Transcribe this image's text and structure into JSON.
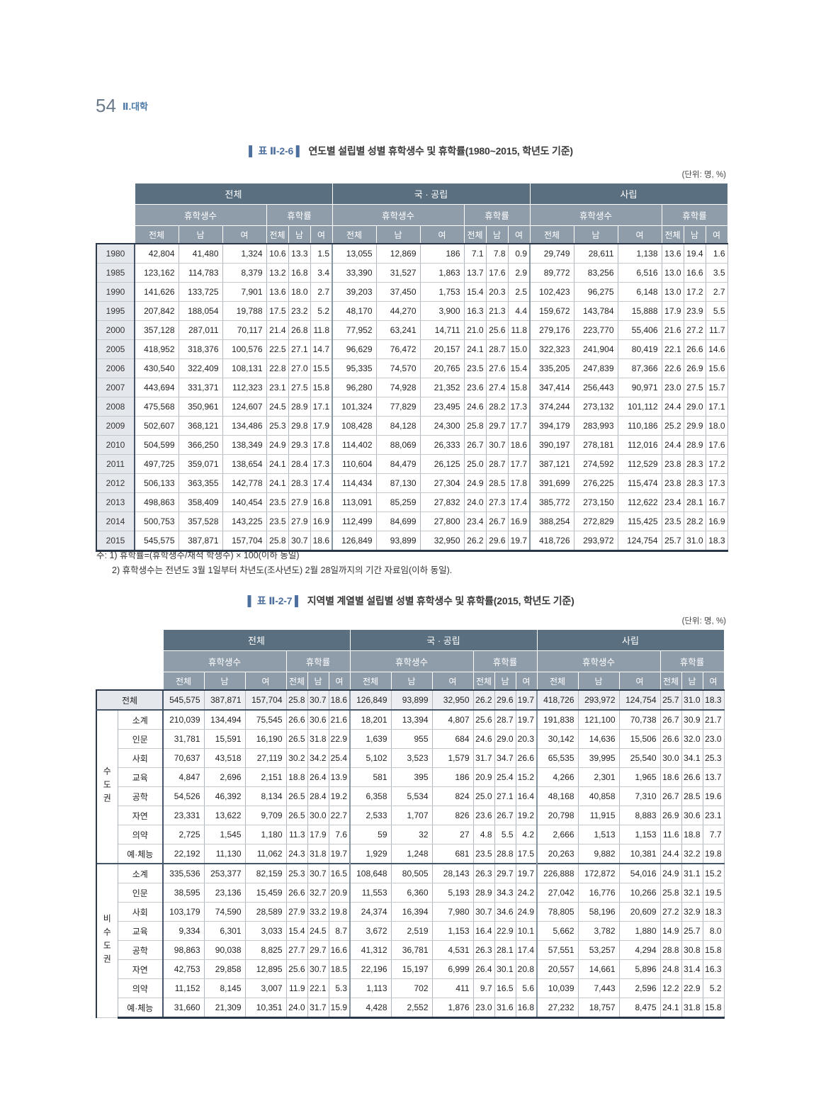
{
  "colors": {
    "accent_blue": "#4d6f9d",
    "header_dark": "#5a7080",
    "header_mid": "#8f9dab",
    "label_bg": "#e4e7ec",
    "total_row_bg": "#eceef1"
  },
  "page": {
    "number": "54",
    "section": "Ⅱ.대학"
  },
  "table1": {
    "title_tag": "�Ⅰ 표 Ⅱ-2-6 ▕",
    "title_tag_display": "▌ 표 Ⅱ-2-6 ▌",
    "title": "연도별 설립별 성별 휴학생수 및 휴학률(1980~2015, 학년도 기준)",
    "unit": "(단위: 명, %)",
    "col_groups": [
      "전체",
      "국 · 공립",
      "사립"
    ],
    "sub_groups": [
      "휴학생수",
      "휴학률"
    ],
    "leaf_headers": [
      "전체",
      "남",
      "여"
    ],
    "rows": [
      {
        "label": "1980",
        "values": [
          "42,804",
          "41,480",
          "1,324",
          "10.6",
          "13.3",
          "1.5",
          "13,055",
          "12,869",
          "186",
          "7.1",
          "7.8",
          "0.9",
          "29,749",
          "28,611",
          "1,138",
          "13.6",
          "19.4",
          "1.6"
        ]
      },
      {
        "label": "1985",
        "values": [
          "123,162",
          "114,783",
          "8,379",
          "13.2",
          "16.8",
          "3.4",
          "33,390",
          "31,527",
          "1,863",
          "13.7",
          "17.6",
          "2.9",
          "89,772",
          "83,256",
          "6,516",
          "13.0",
          "16.6",
          "3.5"
        ]
      },
      {
        "label": "1990",
        "values": [
          "141,626",
          "133,725",
          "7,901",
          "13.6",
          "18.0",
          "2.7",
          "39,203",
          "37,450",
          "1,753",
          "15.4",
          "20.3",
          "2.5",
          "102,423",
          "96,275",
          "6,148",
          "13.0",
          "17.2",
          "2.7"
        ]
      },
      {
        "label": "1995",
        "values": [
          "207,842",
          "188,054",
          "19,788",
          "17.5",
          "23.2",
          "5.2",
          "48,170",
          "44,270",
          "3,900",
          "16.3",
          "21.3",
          "4.4",
          "159,672",
          "143,784",
          "15,888",
          "17.9",
          "23.9",
          "5.5"
        ]
      },
      {
        "label": "2000",
        "values": [
          "357,128",
          "287,011",
          "70,117",
          "21.4",
          "26.8",
          "11.8",
          "77,952",
          "63,241",
          "14,711",
          "21.0",
          "25.6",
          "11.8",
          "279,176",
          "223,770",
          "55,406",
          "21.6",
          "27.2",
          "11.7"
        ]
      },
      {
        "label": "2005",
        "values": [
          "418,952",
          "318,376",
          "100,576",
          "22.5",
          "27.1",
          "14.7",
          "96,629",
          "76,472",
          "20,157",
          "24.1",
          "28.7",
          "15.0",
          "322,323",
          "241,904",
          "80,419",
          "22.1",
          "26.6",
          "14.6"
        ]
      },
      {
        "label": "2006",
        "values": [
          "430,540",
          "322,409",
          "108,131",
          "22.8",
          "27.0",
          "15.5",
          "95,335",
          "74,570",
          "20,765",
          "23.5",
          "27.6",
          "15.4",
          "335,205",
          "247,839",
          "87,366",
          "22.6",
          "26.9",
          "15.6"
        ]
      },
      {
        "label": "2007",
        "values": [
          "443,694",
          "331,371",
          "112,323",
          "23.1",
          "27.5",
          "15.8",
          "96,280",
          "74,928",
          "21,352",
          "23.6",
          "27.4",
          "15.8",
          "347,414",
          "256,443",
          "90,971",
          "23.0",
          "27.5",
          "15.7"
        ]
      },
      {
        "label": "2008",
        "values": [
          "475,568",
          "350,961",
          "124,607",
          "24.5",
          "28.9",
          "17.1",
          "101,324",
          "77,829",
          "23,495",
          "24.6",
          "28.2",
          "17.3",
          "374,244",
          "273,132",
          "101,112",
          "24.4",
          "29.0",
          "17.1"
        ]
      },
      {
        "label": "2009",
        "values": [
          "502,607",
          "368,121",
          "134,486",
          "25.3",
          "29.8",
          "17.9",
          "108,428",
          "84,128",
          "24,300",
          "25.8",
          "29.7",
          "17.7",
          "394,179",
          "283,993",
          "110,186",
          "25.2",
          "29.9",
          "18.0"
        ]
      },
      {
        "label": "2010",
        "values": [
          "504,599",
          "366,250",
          "138,349",
          "24.9",
          "29.3",
          "17.8",
          "114,402",
          "88,069",
          "26,333",
          "26.7",
          "30.7",
          "18.6",
          "390,197",
          "278,181",
          "112,016",
          "24.4",
          "28.9",
          "17.6"
        ]
      },
      {
        "label": "2011",
        "values": [
          "497,725",
          "359,071",
          "138,654",
          "24.1",
          "28.4",
          "17.3",
          "110,604",
          "84,479",
          "26,125",
          "25.0",
          "28.7",
          "17.7",
          "387,121",
          "274,592",
          "112,529",
          "23.8",
          "28.3",
          "17.2"
        ]
      },
      {
        "label": "2012",
        "values": [
          "506,133",
          "363,355",
          "142,778",
          "24.1",
          "28.3",
          "17.4",
          "114,434",
          "87,130",
          "27,304",
          "24.9",
          "28.5",
          "17.8",
          "391,699",
          "276,225",
          "115,474",
          "23.8",
          "28.3",
          "17.3"
        ]
      },
      {
        "label": "2013",
        "values": [
          "498,863",
          "358,409",
          "140,454",
          "23.5",
          "27.9",
          "16.8",
          "113,091",
          "85,259",
          "27,832",
          "24.0",
          "27.3",
          "17.4",
          "385,772",
          "273,150",
          "112,622",
          "23.4",
          "28.1",
          "16.7"
        ]
      },
      {
        "label": "2014",
        "values": [
          "500,753",
          "357,528",
          "143,225",
          "23.5",
          "27.9",
          "16.9",
          "112,499",
          "84,699",
          "27,800",
          "23.4",
          "26.7",
          "16.9",
          "388,254",
          "272,829",
          "115,425",
          "23.5",
          "28.2",
          "16.9"
        ]
      },
      {
        "label": "2015",
        "values": [
          "545,575",
          "387,871",
          "157,704",
          "25.8",
          "30.7",
          "18.6",
          "126,849",
          "93,899",
          "32,950",
          "26.2",
          "29.6",
          "19.7",
          "418,726",
          "293,972",
          "124,754",
          "25.7",
          "31.0",
          "18.3"
        ]
      }
    ],
    "notes": [
      "주: 1) 휴학률=(휴학생수/재적 학생수) × 100(이하 동일)",
      "2) 휴학생수는 전년도 3월 1일부터 차년도(조사년도) 2월 28일까지의 기간 자료임(이하 동일)."
    ]
  },
  "table2": {
    "title_tag_display": "▌ 표 Ⅱ-2-7 ▌",
    "title": "지역별 계열별 설립별 성별 휴학생수 및 휴학률(2015, 학년도 기준)",
    "unit": "(단위: 명, %)",
    "col_groups": [
      "전체",
      "국 · 공립",
      "사립"
    ],
    "sub_groups": [
      "휴학생수",
      "휴학률"
    ],
    "leaf_headers": [
      "전체",
      "남",
      "여"
    ],
    "total_row": {
      "label": "전체",
      "values": [
        "545,575",
        "387,871",
        "157,704",
        "25.8",
        "30.7",
        "18.6",
        "126,849",
        "93,899",
        "32,950",
        "26.2",
        "29.6",
        "19.7",
        "418,726",
        "293,972",
        "124,754",
        "25.7",
        "31.0",
        "18.3"
      ]
    },
    "groups": [
      {
        "label": "수도권",
        "rows": [
          {
            "label": "소계",
            "values": [
              "210,039",
              "134,494",
              "75,545",
              "26.6",
              "30.6",
              "21.6",
              "18,201",
              "13,394",
              "4,807",
              "25.6",
              "28.7",
              "19.7",
              "191,838",
              "121,100",
              "70,738",
              "26.7",
              "30.9",
              "21.7"
            ]
          },
          {
            "label": "인문",
            "values": [
              "31,781",
              "15,591",
              "16,190",
              "26.5",
              "31.8",
              "22.9",
              "1,639",
              "955",
              "684",
              "24.6",
              "29.0",
              "20.3",
              "30,142",
              "14,636",
              "15,506",
              "26.6",
              "32.0",
              "23.0"
            ]
          },
          {
            "label": "사회",
            "values": [
              "70,637",
              "43,518",
              "27,119",
              "30.2",
              "34.2",
              "25.4",
              "5,102",
              "3,523",
              "1,579",
              "31.7",
              "34.7",
              "26.6",
              "65,535",
              "39,995",
              "25,540",
              "30.0",
              "34.1",
              "25.3"
            ]
          },
          {
            "label": "교육",
            "values": [
              "4,847",
              "2,696",
              "2,151",
              "18.8",
              "26.4",
              "13.9",
              "581",
              "395",
              "186",
              "20.9",
              "25.4",
              "15.2",
              "4,266",
              "2,301",
              "1,965",
              "18.6",
              "26.6",
              "13.7"
            ]
          },
          {
            "label": "공학",
            "values": [
              "54,526",
              "46,392",
              "8,134",
              "26.5",
              "28.4",
              "19.2",
              "6,358",
              "5,534",
              "824",
              "25.0",
              "27.1",
              "16.4",
              "48,168",
              "40,858",
              "7,310",
              "26.7",
              "28.5",
              "19.6"
            ]
          },
          {
            "label": "자연",
            "values": [
              "23,331",
              "13,622",
              "9,709",
              "26.5",
              "30.0",
              "22.7",
              "2,533",
              "1,707",
              "826",
              "23.6",
              "26.7",
              "19.2",
              "20,798",
              "11,915",
              "8,883",
              "26.9",
              "30.6",
              "23.1"
            ]
          },
          {
            "label": "의약",
            "values": [
              "2,725",
              "1,545",
              "1,180",
              "11.3",
              "17.9",
              "7.6",
              "59",
              "32",
              "27",
              "4.8",
              "5.5",
              "4.2",
              "2,666",
              "1,513",
              "1,153",
              "11.6",
              "18.8",
              "7.7"
            ]
          },
          {
            "label": "예·체능",
            "values": [
              "22,192",
              "11,130",
              "11,062",
              "24.3",
              "31.8",
              "19.7",
              "1,929",
              "1,248",
              "681",
              "23.5",
              "28.8",
              "17.5",
              "20,263",
              "9,882",
              "10,381",
              "24.4",
              "32.2",
              "19.8"
            ]
          }
        ]
      },
      {
        "label": "비수도권",
        "rows": [
          {
            "label": "소계",
            "values": [
              "335,536",
              "253,377",
              "82,159",
              "25.3",
              "30.7",
              "16.5",
              "108,648",
              "80,505",
              "28,143",
              "26.3",
              "29.7",
              "19.7",
              "226,888",
              "172,872",
              "54,016",
              "24.9",
              "31.1",
              "15.2"
            ]
          },
          {
            "label": "인문",
            "values": [
              "38,595",
              "23,136",
              "15,459",
              "26.6",
              "32.7",
              "20.9",
              "11,553",
              "6,360",
              "5,193",
              "28.9",
              "34.3",
              "24.2",
              "27,042",
              "16,776",
              "10,266",
              "25.8",
              "32.1",
              "19.5"
            ]
          },
          {
            "label": "사회",
            "values": [
              "103,179",
              "74,590",
              "28,589",
              "27.9",
              "33.2",
              "19.8",
              "24,374",
              "16,394",
              "7,980",
              "30.7",
              "34.6",
              "24.9",
              "78,805",
              "58,196",
              "20,609",
              "27.2",
              "32.9",
              "18.3"
            ]
          },
          {
            "label": "교육",
            "values": [
              "9,334",
              "6,301",
              "3,033",
              "15.4",
              "24.5",
              "8.7",
              "3,672",
              "2,519",
              "1,153",
              "16.4",
              "22.9",
              "10.1",
              "5,662",
              "3,782",
              "1,880",
              "14.9",
              "25.7",
              "8.0"
            ]
          },
          {
            "label": "공학",
            "values": [
              "98,863",
              "90,038",
              "8,825",
              "27.7",
              "29.7",
              "16.6",
              "41,312",
              "36,781",
              "4,531",
              "26.3",
              "28.1",
              "17.4",
              "57,551",
              "53,257",
              "4,294",
              "28.8",
              "30.8",
              "15.8"
            ]
          },
          {
            "label": "자연",
            "values": [
              "42,753",
              "29,858",
              "12,895",
              "25.6",
              "30.7",
              "18.5",
              "22,196",
              "15,197",
              "6,999",
              "26.4",
              "30.1",
              "20.8",
              "20,557",
              "14,661",
              "5,896",
              "24.8",
              "31.4",
              "16.3"
            ]
          },
          {
            "label": "의약",
            "values": [
              "11,152",
              "8,145",
              "3,007",
              "11.9",
              "22.1",
              "5.3",
              "1,113",
              "702",
              "411",
              "9.7",
              "16.5",
              "5.6",
              "10,039",
              "7,443",
              "2,596",
              "12.2",
              "22.9",
              "5.2"
            ]
          },
          {
            "label": "예·체능",
            "values": [
              "31,660",
              "21,309",
              "10,351",
              "24.0",
              "31.7",
              "15.9",
              "4,428",
              "2,552",
              "1,876",
              "23.0",
              "31.6",
              "16.8",
              "27,232",
              "18,757",
              "8,475",
              "24.1",
              "31.8",
              "15.8"
            ]
          }
        ]
      }
    ]
  }
}
